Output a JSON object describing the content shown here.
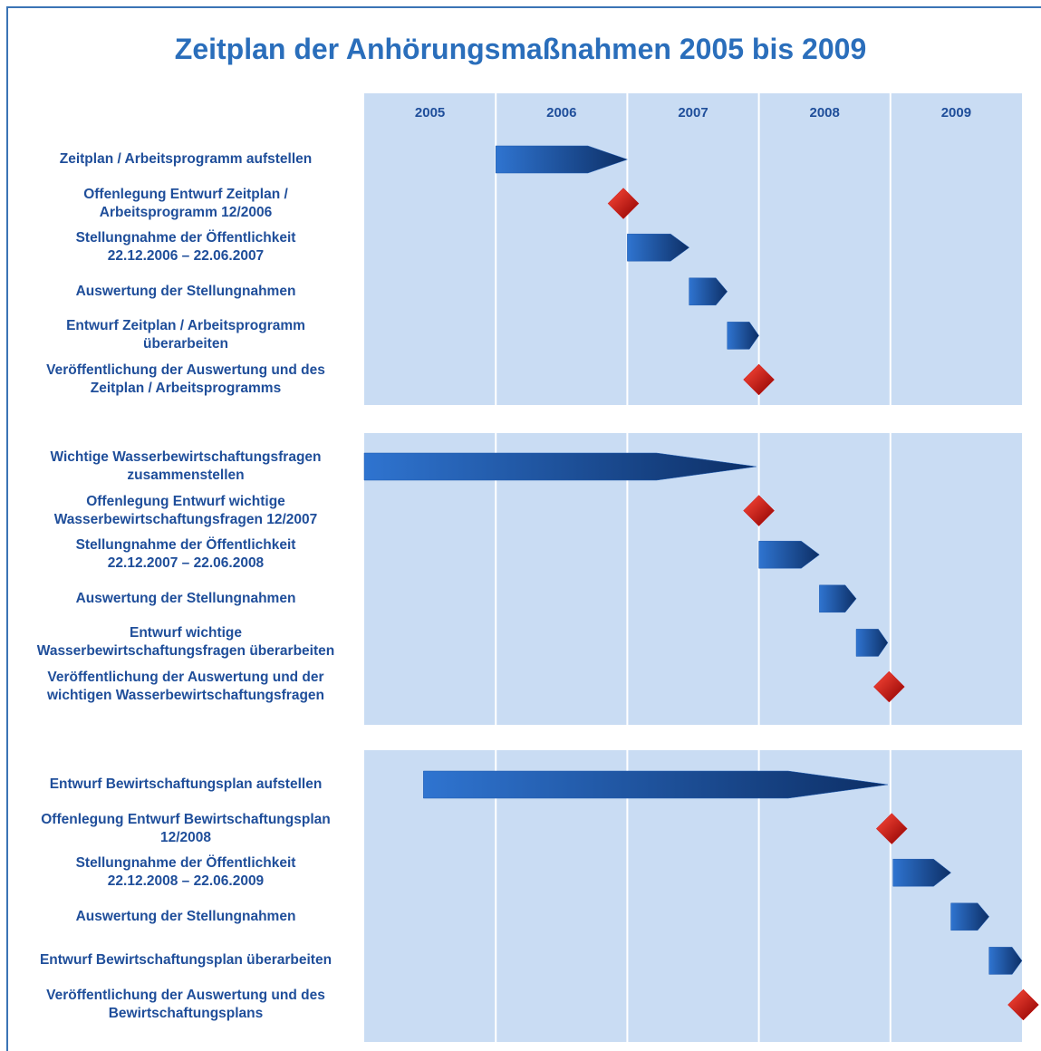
{
  "chart_data": {
    "type": "gantt",
    "title": "Zeitplan der Anhörungsmaßnahmen 2005 bis 2009",
    "xlim": [
      2005,
      2010
    ],
    "xticks": [
      2005,
      2006,
      2007,
      2008,
      2009
    ],
    "bar_color": "#1f5bb0",
    "milestone_color": "#d01010",
    "panel_color": "#c9dcf3",
    "groups": [
      {
        "tasks": [
          {
            "label": "Zeitplan / Arbeitsprogramm aufstellen",
            "start": 2006,
            "end": 2007
          },
          {
            "label": "Offenlegung Entwurf Zeitplan /\nArbeitsprogramm 12/2006",
            "date": 2006.97
          },
          {
            "label": "Stellungnahme der Öffentlichkeit\n22.12.2006 – 22.06.2007",
            "start": 2007,
            "end": 2007.47
          },
          {
            "label": "Auswertung der Stellungnahmen",
            "start": 2007.47,
            "end": 2007.76
          },
          {
            "label": "Entwurf Zeitplan / Arbeitsprogramm\nüberarbeiten",
            "start": 2007.76,
            "end": 2008
          },
          {
            "label": "Veröffentlichung der Auswertung und des\nZeitplan / Arbeitsprogramms",
            "date": 2008
          }
        ]
      },
      {
        "tasks": [
          {
            "label": "Wichtige Wasserbewirtschaftungsfragen\nzusammenstellen",
            "start": 2005,
            "end": 2007.98
          },
          {
            "label": "Offenlegung Entwurf wichtige\nWasserbewirtschaftungsfragen 12/2007",
            "date": 2008
          },
          {
            "label": "Stellungnahme der Öffentlichkeit\n22.12.2007 – 22.06.2008",
            "start": 2008,
            "end": 2008.46
          },
          {
            "label": "Auswertung der Stellungnahmen",
            "start": 2008.46,
            "end": 2008.74
          },
          {
            "label": "Entwurf wichtige\nWasserbewirtschaftungsfragen überarbeiten",
            "start": 2008.74,
            "end": 2008.98
          },
          {
            "label": "Veröffentlichung der Auswertung und der\nwichtigen Wasserbewirtschaftungsfragen",
            "date": 2008.99
          }
        ]
      },
      {
        "tasks": [
          {
            "label": "Entwurf Bewirtschaftungsplan aufstellen",
            "start": 2005.45,
            "end": 2008.98
          },
          {
            "label": "Offenlegung Entwurf Bewirtschaftungsplan\n12/2008",
            "date": 2009.01
          },
          {
            "label": "Stellungnahme der Öffentlichkeit\n22.12.2008 – 22.06.2009",
            "start": 2009.02,
            "end": 2009.46
          },
          {
            "label": "Auswertung der Stellungnahmen",
            "start": 2009.46,
            "end": 2009.75
          },
          {
            "label": "Entwurf Bewirtschaftungsplan überarbeiten",
            "start": 2009.75,
            "end": 2010
          },
          {
            "label": "Veröffentlichung der Auswertung und des\nBewirtschaftungsplans",
            "date": 2010.01
          }
        ]
      }
    ]
  }
}
